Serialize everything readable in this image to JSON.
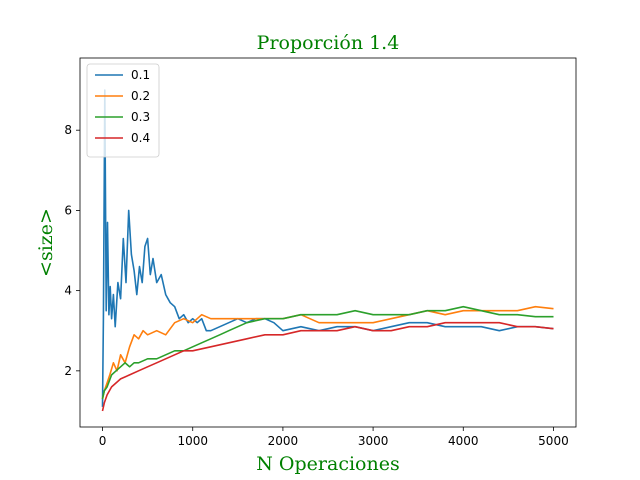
{
  "chart_data": {
    "type": "line",
    "title": "Proporción 1.4",
    "xlabel": "N Operaciones",
    "ylabel": "<size>",
    "label_color": "#008000",
    "xlim": [
      -250,
      5250
    ],
    "ylim": [
      0.6,
      9.8
    ],
    "xticks": [
      0,
      1000,
      2000,
      3000,
      4000,
      5000
    ],
    "yticks": [
      2,
      4,
      6,
      8
    ],
    "xtick_labels": [
      "0",
      "1000",
      "2000",
      "3000",
      "4000",
      "5000"
    ],
    "ytick_labels": [
      "2",
      "4",
      "6",
      "8"
    ],
    "grid": false,
    "legend_position": "top-left",
    "series": [
      {
        "name": "0.1",
        "color": "#1f77b4",
        "x": [
          0,
          10,
          25,
          40,
          55,
          70,
          85,
          100,
          120,
          140,
          170,
          200,
          230,
          260,
          290,
          320,
          350,
          380,
          410,
          440,
          470,
          500,
          530,
          560,
          600,
          650,
          700,
          750,
          800,
          850,
          900,
          950,
          1000,
          1050,
          1100,
          1150,
          1200,
          1300,
          1400,
          1500,
          1600,
          1700,
          1800,
          1900,
          2000,
          2200,
          2400,
          2600,
          2800,
          3000,
          3200,
          3400,
          3600,
          3800,
          4000,
          4200,
          4400,
          4600,
          4800,
          5000
        ],
        "y": [
          1.1,
          3.3,
          9.0,
          3.5,
          5.7,
          3.4,
          4.1,
          3.3,
          3.9,
          3.1,
          4.2,
          3.8,
          5.3,
          4.2,
          6.0,
          4.9,
          4.5,
          3.9,
          4.6,
          4.2,
          5.1,
          5.3,
          4.4,
          4.8,
          4.2,
          4.4,
          3.9,
          3.7,
          3.6,
          3.3,
          3.4,
          3.2,
          3.3,
          3.2,
          3.3,
          3.0,
          3.0,
          3.1,
          3.2,
          3.3,
          3.2,
          3.3,
          3.3,
          3.2,
          3.0,
          3.1,
          3.0,
          3.1,
          3.1,
          3.0,
          3.1,
          3.2,
          3.2,
          3.1,
          3.1,
          3.1,
          3.0,
          3.1,
          3.1,
          3.05
        ]
      },
      {
        "name": "0.2",
        "color": "#ff7f0e",
        "x": [
          0,
          20,
          50,
          80,
          120,
          160,
          200,
          250,
          300,
          350,
          400,
          450,
          500,
          600,
          700,
          800,
          900,
          1000,
          1100,
          1200,
          1400,
          1600,
          1800,
          2000,
          2200,
          2400,
          2600,
          2800,
          3000,
          3200,
          3400,
          3600,
          3800,
          4000,
          4200,
          4400,
          4600,
          4800,
          5000
        ],
        "y": [
          1.3,
          1.5,
          1.7,
          1.9,
          2.2,
          2.0,
          2.4,
          2.2,
          2.6,
          2.9,
          2.8,
          3.0,
          2.9,
          3.0,
          2.9,
          3.2,
          3.3,
          3.2,
          3.4,
          3.3,
          3.3,
          3.3,
          3.3,
          3.3,
          3.4,
          3.2,
          3.2,
          3.2,
          3.2,
          3.3,
          3.4,
          3.5,
          3.4,
          3.5,
          3.5,
          3.5,
          3.5,
          3.6,
          3.55
        ]
      },
      {
        "name": "0.3",
        "color": "#2ca02c",
        "x": [
          0,
          20,
          50,
          100,
          150,
          200,
          250,
          300,
          350,
          400,
          500,
          600,
          700,
          800,
          900,
          1000,
          1100,
          1200,
          1300,
          1400,
          1500,
          1600,
          1800,
          2000,
          2200,
          2400,
          2600,
          2800,
          3000,
          3200,
          3400,
          3600,
          3800,
          4000,
          4200,
          4400,
          4600,
          4800,
          5000
        ],
        "y": [
          1.3,
          1.5,
          1.6,
          1.9,
          2.0,
          2.1,
          2.2,
          2.1,
          2.2,
          2.2,
          2.3,
          2.3,
          2.4,
          2.5,
          2.5,
          2.6,
          2.7,
          2.8,
          2.9,
          3.0,
          3.1,
          3.2,
          3.3,
          3.3,
          3.4,
          3.4,
          3.4,
          3.5,
          3.4,
          3.4,
          3.4,
          3.5,
          3.5,
          3.6,
          3.5,
          3.4,
          3.4,
          3.35,
          3.35
        ]
      },
      {
        "name": "0.4",
        "color": "#d62728",
        "x": [
          0,
          20,
          50,
          100,
          150,
          200,
          300,
          400,
          500,
          600,
          700,
          800,
          900,
          1000,
          1200,
          1400,
          1600,
          1800,
          2000,
          2200,
          2400,
          2600,
          2800,
          3000,
          3200,
          3400,
          3600,
          3800,
          4000,
          4200,
          4400,
          4600,
          4800,
          5000
        ],
        "y": [
          1.0,
          1.2,
          1.4,
          1.6,
          1.7,
          1.8,
          1.9,
          2.0,
          2.1,
          2.2,
          2.3,
          2.4,
          2.5,
          2.5,
          2.6,
          2.7,
          2.8,
          2.9,
          2.9,
          3.0,
          3.0,
          3.0,
          3.1,
          3.0,
          3.0,
          3.1,
          3.1,
          3.2,
          3.2,
          3.2,
          3.2,
          3.1,
          3.1,
          3.05
        ]
      }
    ]
  }
}
